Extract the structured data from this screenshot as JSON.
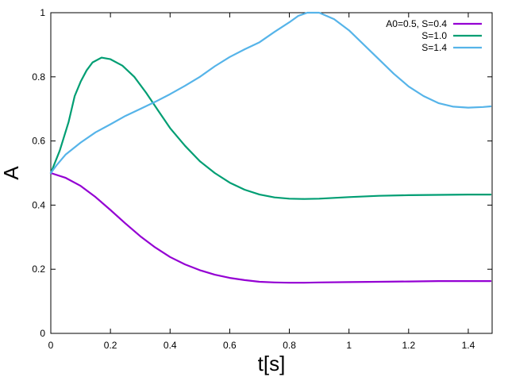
{
  "chart_data": {
    "type": "line",
    "title": "",
    "xlabel": "t[s]",
    "ylabel": "A",
    "xlim": [
      0,
      1.48
    ],
    "ylim": [
      0,
      1
    ],
    "xticks": [
      0,
      0.2,
      0.4,
      0.6,
      0.8,
      1,
      1.2,
      1.4
    ],
    "xtick_labels": [
      "0",
      "0.2",
      "0.4",
      "0.6",
      "0.8",
      "1",
      "1.2",
      "1.4"
    ],
    "yticks": [
      0,
      0.2,
      0.4,
      0.6,
      0.8,
      1
    ],
    "ytick_labels": [
      "0",
      "0.2",
      "0.4",
      "0.6",
      "0.8",
      "1"
    ],
    "grid": false,
    "legend_position": "top-right",
    "series": [
      {
        "name": "A0=0.5, S=0.4",
        "color": "#9400d3",
        "points": [
          [
            0,
            0.5
          ],
          [
            0.05,
            0.485
          ],
          [
            0.1,
            0.46
          ],
          [
            0.15,
            0.425
          ],
          [
            0.2,
            0.385
          ],
          [
            0.25,
            0.343
          ],
          [
            0.3,
            0.303
          ],
          [
            0.35,
            0.268
          ],
          [
            0.4,
            0.238
          ],
          [
            0.45,
            0.215
          ],
          [
            0.5,
            0.197
          ],
          [
            0.55,
            0.183
          ],
          [
            0.6,
            0.173
          ],
          [
            0.65,
            0.166
          ],
          [
            0.7,
            0.161
          ],
          [
            0.75,
            0.159
          ],
          [
            0.8,
            0.158
          ],
          [
            0.85,
            0.158
          ],
          [
            0.9,
            0.159
          ],
          [
            1.0,
            0.16
          ],
          [
            1.1,
            0.161
          ],
          [
            1.2,
            0.162
          ],
          [
            1.3,
            0.163
          ],
          [
            1.4,
            0.163
          ],
          [
            1.475,
            0.163
          ]
        ]
      },
      {
        "name": "S=1.0",
        "color": "#009e73",
        "points": [
          [
            0,
            0.5
          ],
          [
            0.03,
            0.57
          ],
          [
            0.06,
            0.66
          ],
          [
            0.08,
            0.74
          ],
          [
            0.1,
            0.785
          ],
          [
            0.12,
            0.82
          ],
          [
            0.14,
            0.845
          ],
          [
            0.17,
            0.86
          ],
          [
            0.2,
            0.855
          ],
          [
            0.24,
            0.835
          ],
          [
            0.28,
            0.8
          ],
          [
            0.32,
            0.75
          ],
          [
            0.36,
            0.695
          ],
          [
            0.4,
            0.64
          ],
          [
            0.45,
            0.585
          ],
          [
            0.5,
            0.537
          ],
          [
            0.55,
            0.5
          ],
          [
            0.6,
            0.47
          ],
          [
            0.65,
            0.448
          ],
          [
            0.7,
            0.433
          ],
          [
            0.75,
            0.424
          ],
          [
            0.8,
            0.42
          ],
          [
            0.85,
            0.419
          ],
          [
            0.9,
            0.42
          ],
          [
            1.0,
            0.425
          ],
          [
            1.1,
            0.429
          ],
          [
            1.2,
            0.431
          ],
          [
            1.3,
            0.432
          ],
          [
            1.4,
            0.433
          ],
          [
            1.475,
            0.433
          ]
        ]
      },
      {
        "name": "S=1.4",
        "color": "#56b4e9",
        "points": [
          [
            0,
            0.5
          ],
          [
            0.02,
            0.525
          ],
          [
            0.05,
            0.558
          ],
          [
            0.1,
            0.595
          ],
          [
            0.15,
            0.627
          ],
          [
            0.2,
            0.652
          ],
          [
            0.25,
            0.678
          ],
          [
            0.3,
            0.7
          ],
          [
            0.35,
            0.722
          ],
          [
            0.4,
            0.746
          ],
          [
            0.45,
            0.772
          ],
          [
            0.5,
            0.8
          ],
          [
            0.55,
            0.833
          ],
          [
            0.6,
            0.862
          ],
          [
            0.65,
            0.886
          ],
          [
            0.7,
            0.908
          ],
          [
            0.75,
            0.94
          ],
          [
            0.8,
            0.97
          ],
          [
            0.83,
            0.99
          ],
          [
            0.86,
            1.0
          ],
          [
            0.9,
            1.0
          ],
          [
            0.95,
            0.98
          ],
          [
            1.0,
            0.945
          ],
          [
            1.05,
            0.9
          ],
          [
            1.1,
            0.855
          ],
          [
            1.15,
            0.81
          ],
          [
            1.2,
            0.77
          ],
          [
            1.25,
            0.74
          ],
          [
            1.3,
            0.718
          ],
          [
            1.35,
            0.707
          ],
          [
            1.4,
            0.704
          ],
          [
            1.45,
            0.706
          ],
          [
            1.475,
            0.708
          ]
        ]
      }
    ]
  }
}
